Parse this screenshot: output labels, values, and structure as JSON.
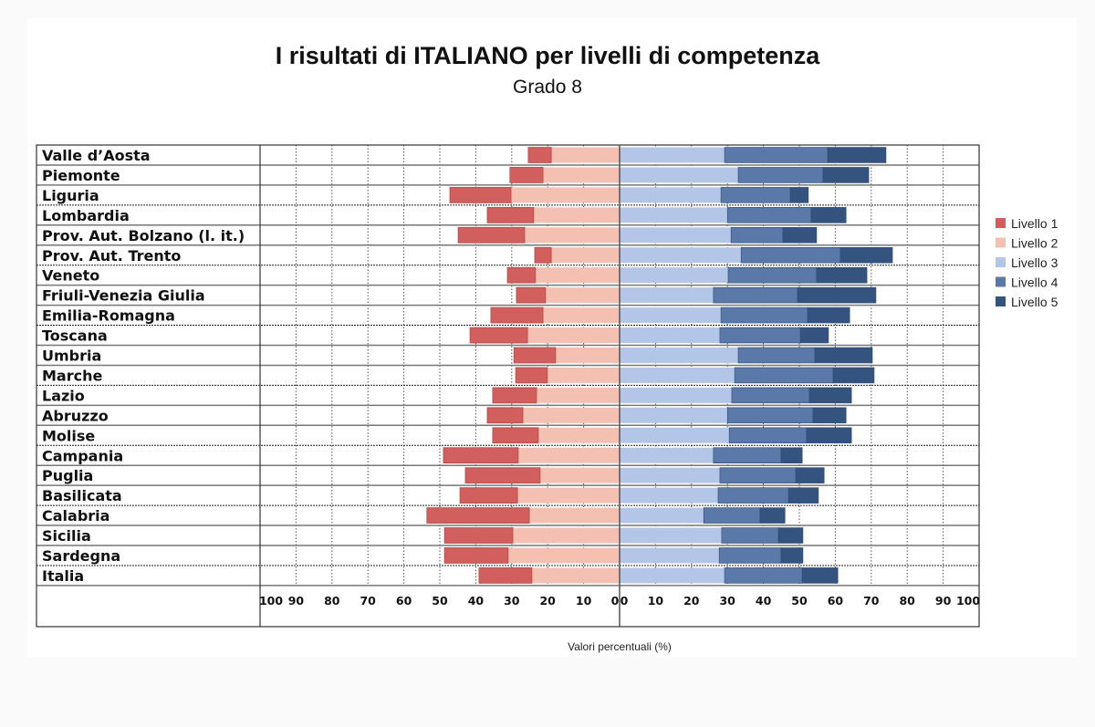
{
  "chart_data": {
    "type": "bar",
    "subtype": "diverging-stacked-horizontal",
    "title": "I risultati di ITALIANO per livelli di competenza",
    "subtitle": "Grado 8",
    "xlabel": "Valori percentuali (%)",
    "xlim_left": [
      100,
      0
    ],
    "xlim_right": [
      0,
      100
    ],
    "left_ticks": [
      "100",
      "90",
      "80",
      "70",
      "60",
      "50",
      "40",
      "30",
      "20",
      "10",
      "0"
    ],
    "right_ticks": [
      "0",
      "10",
      "20",
      "30",
      "40",
      "50",
      "60",
      "70",
      "80",
      "90",
      "100"
    ],
    "legend_position": "right",
    "categories": [
      "Valle d’Aosta",
      "Piemonte",
      "Liguria",
      "Lombardia",
      "Prov. Aut. Bolzano (l. it.)",
      "Prov. Aut. Trento",
      "Veneto",
      "Friuli-Venezia Giulia",
      "Emilia-Romagna",
      "Toscana",
      "Umbria",
      "Marche",
      "Lazio",
      "Abruzzo",
      "Molise",
      "Campania",
      "Puglia",
      "Basilicata",
      "Calabria",
      "Sicilia",
      "Sardegna",
      "Italia"
    ],
    "series": [
      {
        "name": "Livello 1",
        "color": "#d05f5d",
        "side": "left",
        "values": [
          6.4,
          9.2,
          17.0,
          12.9,
          18.5,
          4.6,
          7.8,
          8.1,
          14.5,
          16.0,
          11.6,
          8.8,
          12.2,
          9.9,
          12.7,
          20.8,
          20.8,
          16.0,
          28.5,
          19.0,
          17.7,
          14.7
        ]
      },
      {
        "name": "Livello 2",
        "color": "#f4c0b2",
        "side": "left",
        "values": [
          19.0,
          21.3,
          30.2,
          23.9,
          26.4,
          19.0,
          23.4,
          20.6,
          21.3,
          25.6,
          17.8,
          20.1,
          23.1,
          26.9,
          22.6,
          28.2,
          22.1,
          28.4,
          25.1,
          29.7,
          31.0,
          24.4
        ]
      },
      {
        "name": "Livello 3",
        "color": "#b3c6e7",
        "side": "right",
        "values": [
          29.2,
          33.0,
          28.2,
          30.0,
          31.0,
          33.8,
          30.2,
          26.1,
          28.2,
          27.9,
          33.0,
          32.0,
          31.2,
          30.0,
          30.5,
          26.1,
          27.9,
          27.4,
          23.4,
          28.4,
          27.7,
          29.2
        ]
      },
      {
        "name": "Livello 4",
        "color": "#5b79a8",
        "side": "right",
        "values": [
          28.7,
          23.6,
          19.3,
          23.3,
          14.4,
          27.6,
          24.6,
          23.4,
          24.1,
          22.4,
          21.3,
          27.4,
          21.6,
          23.8,
          21.5,
          18.8,
          21.1,
          19.6,
          15.7,
          15.8,
          17.2,
          21.6
        ]
      },
      {
        "name": "Livello 5",
        "color": "#34547f",
        "side": "right",
        "values": [
          16.2,
          12.7,
          5.0,
          9.7,
          9.4,
          14.5,
          14.0,
          21.8,
          11.7,
          7.8,
          16.0,
          11.4,
          11.7,
          9.2,
          12.5,
          5.9,
          7.9,
          8.3,
          6.9,
          6.8,
          6.1,
          9.9
        ]
      }
    ]
  }
}
